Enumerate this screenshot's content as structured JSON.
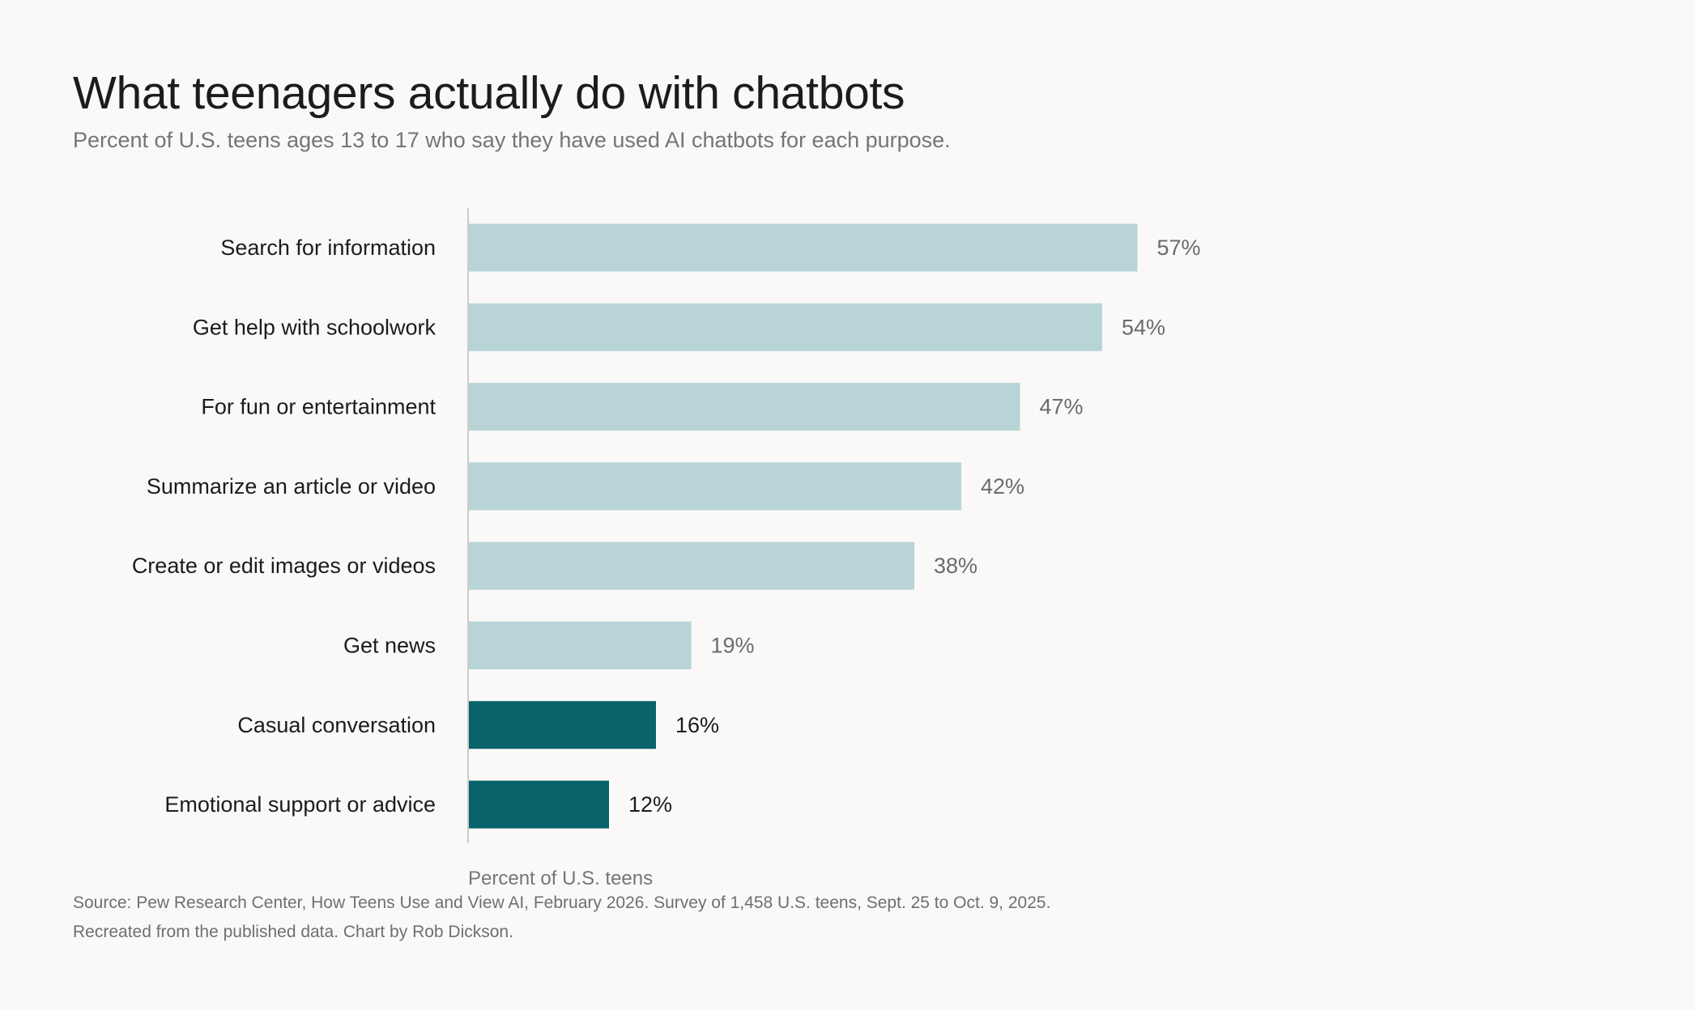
{
  "header": {
    "title": "What teenagers actually do with chatbots",
    "subtitle": "Percent of U.S. teens ages 13 to 17 who say they have used AI chatbots for each purpose."
  },
  "footer": {
    "source": "Source: Pew Research Center, How Teens Use and View AI, February 2026. Survey of 1,458 U.S. teens, Sept. 25 to Oct. 9, 2025.",
    "credit": "Recreated from the published data. Chart by Rob Dickson."
  },
  "chart_data": {
    "type": "bar",
    "orientation": "horizontal",
    "title": "What teenagers actually do with chatbots",
    "subtitle": "Percent of U.S. teens ages 13 to 17 who say they have used AI chatbots for each purpose.",
    "xlabel": "Percent of U.S. teens",
    "ylabel": "",
    "xlim": [
      0,
      100
    ],
    "grid": false,
    "legend": "none",
    "value_suffix": "%",
    "categories": [
      "Search for information",
      "Get help with schoolwork",
      "For fun or entertainment",
      "Summarize an article or video",
      "Create or edit images or videos",
      "Get news",
      "Casual conversation",
      "Emotional support or advice"
    ],
    "values": [
      57,
      54,
      47,
      42,
      38,
      19,
      16,
      12
    ],
    "highlighted": [
      false,
      false,
      false,
      false,
      false,
      false,
      true,
      true
    ],
    "colors": {
      "bar": "#b8d4d7",
      "bar_highlight": "#08636a",
      "value_label": "#6b6b6b",
      "value_label_highlight": "#1c1c1c",
      "category_label": "#1c1c1c",
      "axis": "#cccccc",
      "axis_label": "#757575"
    }
  }
}
